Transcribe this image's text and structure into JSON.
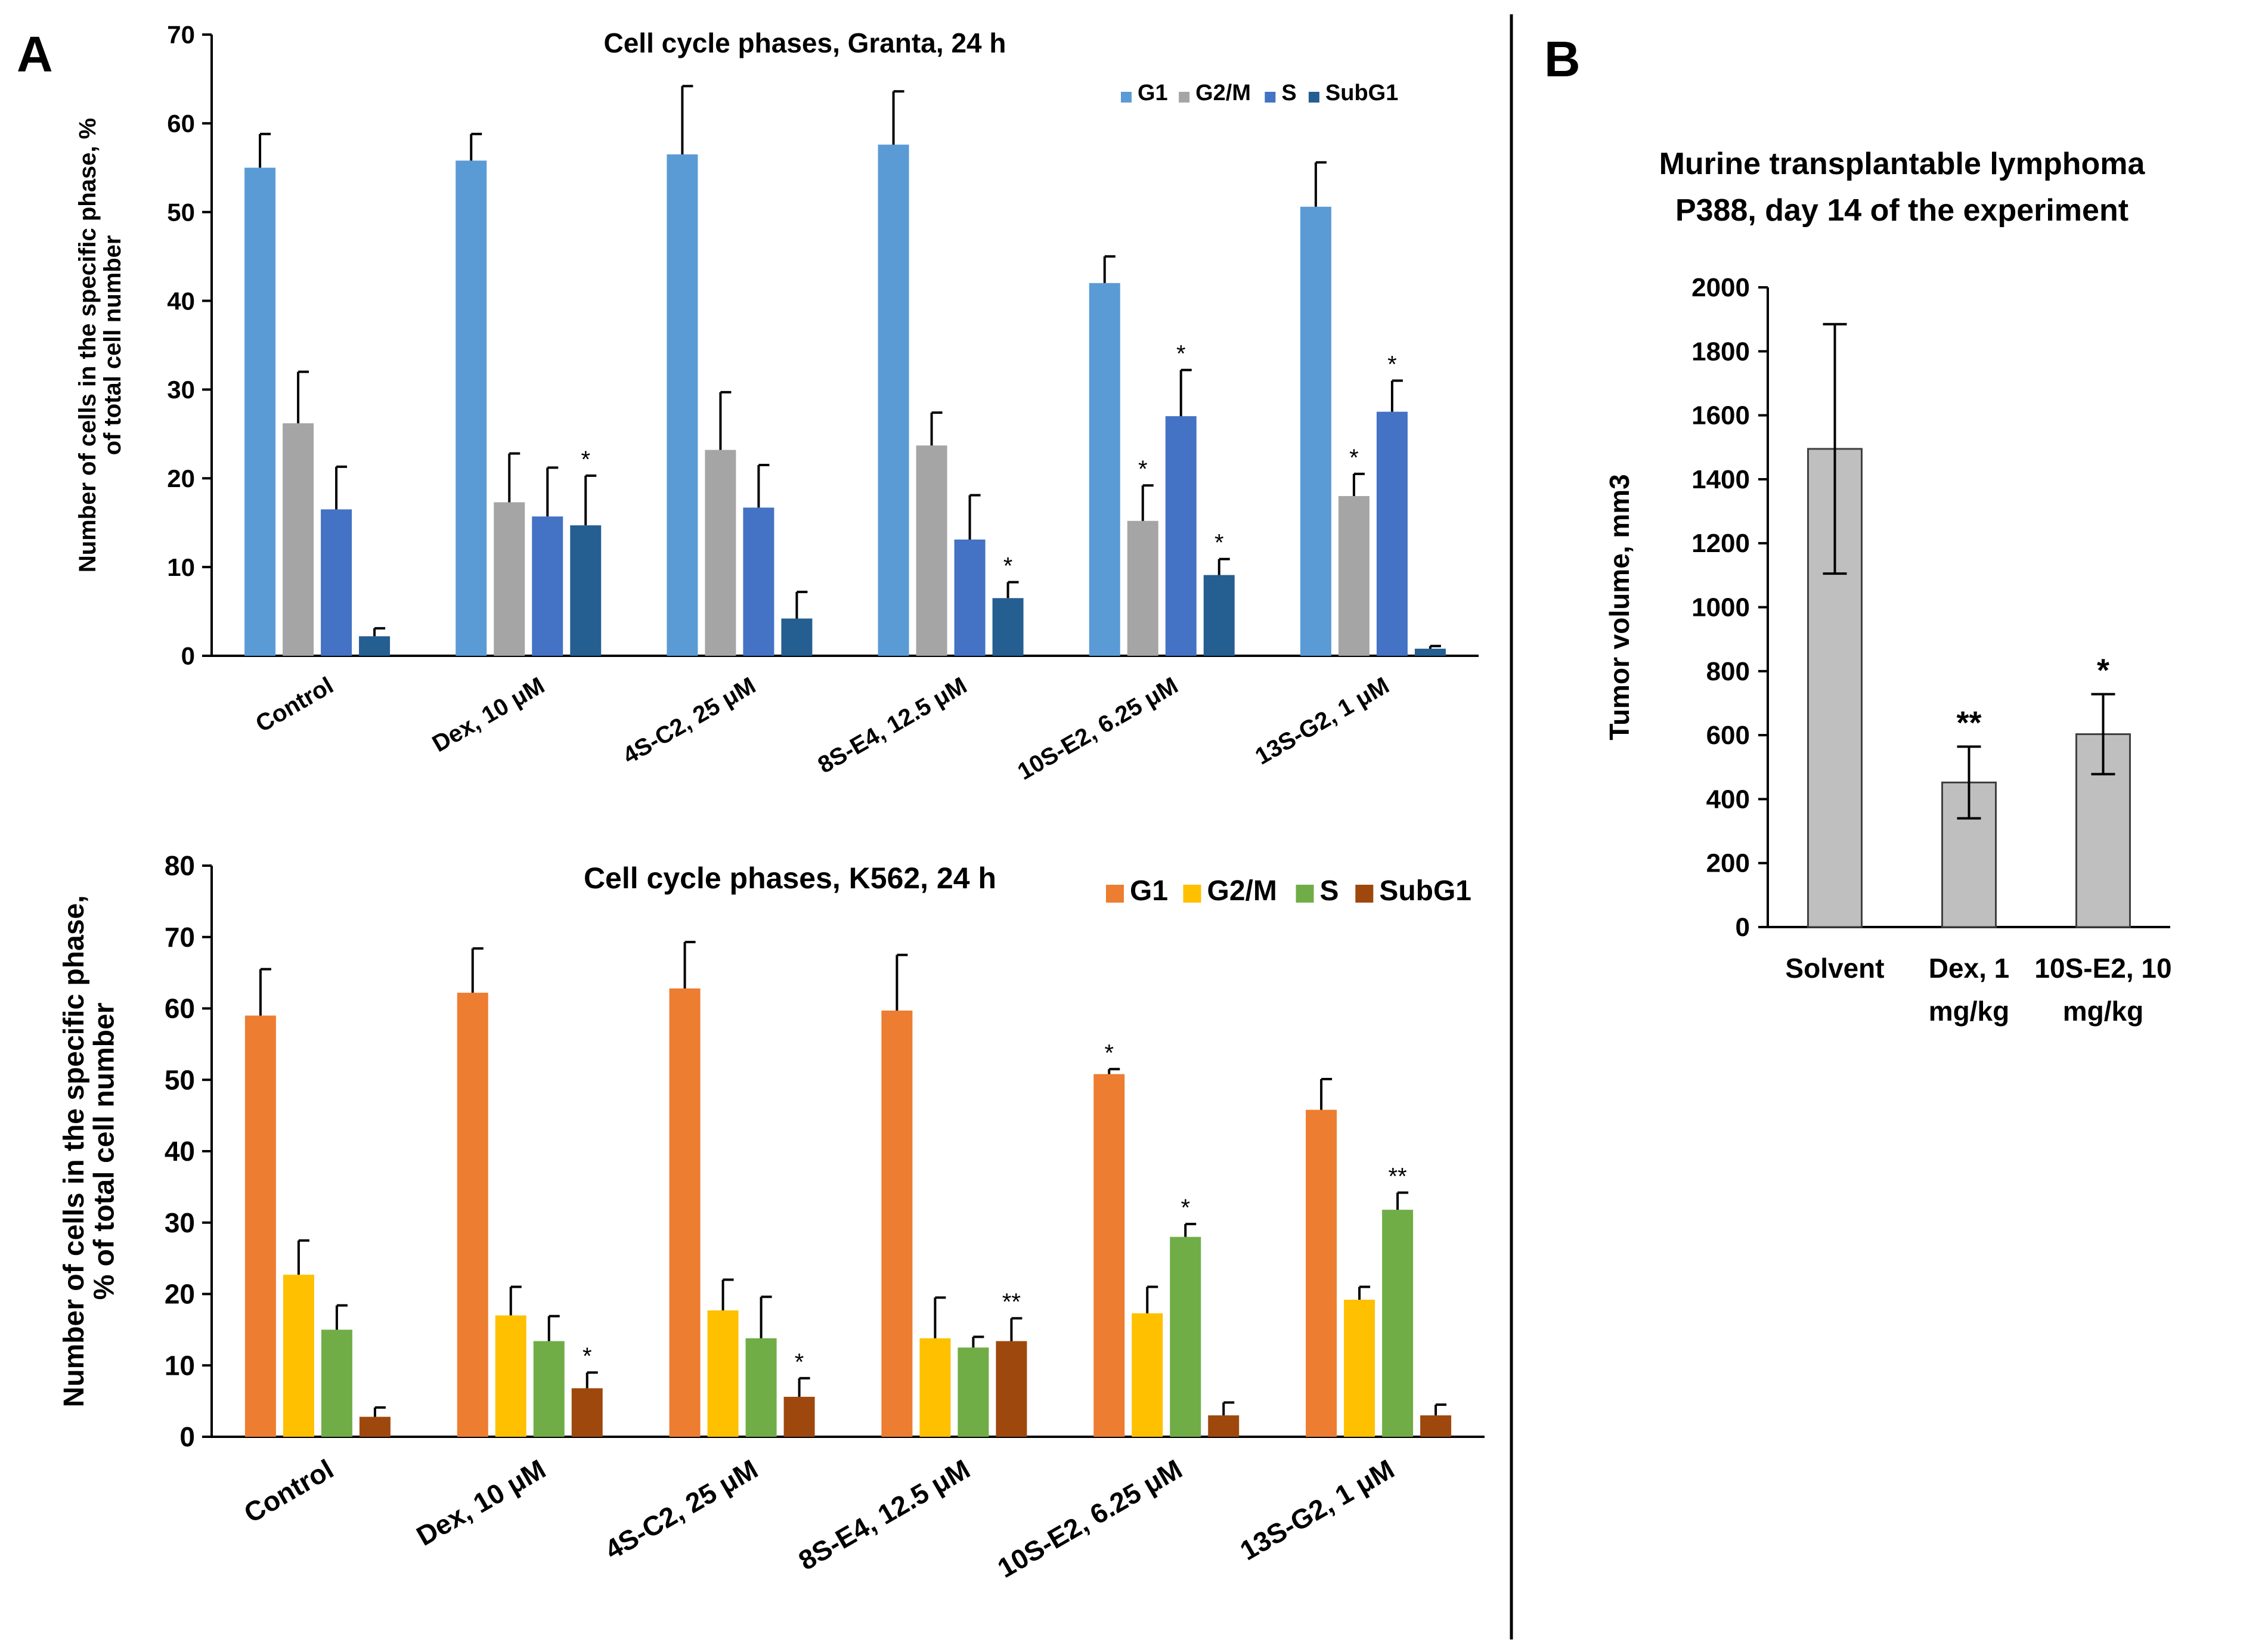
{
  "panels": {
    "a_label": "A",
    "b_label": "B"
  },
  "colors": {
    "granta_g1": "#5b9bd5",
    "granta_g2m": "#a5a5a5",
    "granta_s": "#4472c4",
    "granta_subg1": "#255e91",
    "k562_g1": "#ed7d31",
    "k562_g2m": "#ffc000",
    "k562_s": "#70ad47",
    "k562_subg1": "#9e480e",
    "lymphoma_bar": "#bfbfbf",
    "axis": "#000000"
  },
  "chart_data": [
    {
      "id": "granta",
      "type": "bar",
      "title": "Cell cycle phases, Granta, 24 h",
      "ylabel": "Number of cells in the specific phase, % of total cell number",
      "ylim": [
        0,
        70
      ],
      "yticks": [
        0,
        10,
        20,
        30,
        40,
        50,
        60,
        70
      ],
      "legend_position": "top-right",
      "categories": [
        "Control",
        "Dex, 10 μM",
        "4S-C2, 25 μM",
        "8S-E4, 12.5 μM",
        "10S-E2, 6.25 μM",
        "13S-G2, 1 μM"
      ],
      "series": [
        {
          "name": "G1",
          "values": [
            55,
            55.8,
            56.5,
            57.6,
            42,
            50.6
          ],
          "errors": [
            3.8,
            3,
            7.7,
            6,
            3,
            5
          ],
          "marks": [
            "",
            "",
            "",
            "",
            "",
            ""
          ]
        },
        {
          "name": "G2/M",
          "values": [
            26.2,
            17.3,
            23.2,
            23.7,
            15.2,
            18
          ],
          "errors": [
            5.8,
            5.5,
            6.5,
            3.7,
            4,
            2.5
          ],
          "marks": [
            "",
            "",
            "",
            "",
            "*",
            "*"
          ]
        },
        {
          "name": "S",
          "values": [
            16.5,
            15.7,
            16.7,
            13.1,
            27,
            27.5
          ],
          "errors": [
            4.8,
            5.5,
            4.8,
            5,
            5.2,
            3.5
          ],
          "marks": [
            "",
            "",
            "",
            "",
            "*",
            "*"
          ]
        },
        {
          "name": "SubG1",
          "values": [
            2.2,
            0,
            4.2,
            6.5,
            9.1,
            0.8
          ],
          "errors": [
            0.9,
            0,
            3,
            1.8,
            1.8,
            0.3
          ],
          "marks": [
            "",
            "",
            "",
            "*",
            "*",
            ""
          ]
        }
      ],
      "extra_bars": [
        {
          "category": 1,
          "series": 3,
          "value": 14.7,
          "error": 5.6,
          "mark": "*"
        }
      ]
    },
    {
      "id": "k562",
      "type": "bar",
      "title": "Cell cycle phases, K562, 24 h",
      "ylabel": "Number of cells in the specific phase, % of total cell number",
      "ylim": [
        0,
        80
      ],
      "yticks": [
        0,
        10,
        20,
        30,
        40,
        50,
        60,
        70,
        80
      ],
      "legend_position": "top-right",
      "categories": [
        "Control",
        "Dex, 10 μM",
        "4S-C2, 25 μM",
        "8S-E4, 12.5 μM",
        "10S-E2, 6.25 μM",
        "13S-G2, 1 μM"
      ],
      "series": [
        {
          "name": "G1",
          "values": [
            59,
            62.2,
            62.8,
            59.7,
            50.8,
            45.8
          ],
          "errors": [
            6.5,
            6.2,
            6.5,
            7.8,
            0.7,
            4.3
          ],
          "marks": [
            "",
            "",
            "",
            "",
            "*",
            ""
          ]
        },
        {
          "name": "G2/M",
          "values": [
            22.7,
            17,
            17.7,
            13.8,
            17.3,
            19.2
          ],
          "errors": [
            4.8,
            4,
            4.3,
            5.7,
            3.7,
            1.8
          ],
          "marks": [
            "",
            "",
            "",
            "",
            "",
            ""
          ]
        },
        {
          "name": "S",
          "values": [
            15,
            13.4,
            13.8,
            12.5,
            28,
            31.8
          ],
          "errors": [
            3.4,
            3.5,
            5.8,
            1.5,
            1.8,
            2.4
          ],
          "marks": [
            "",
            "",
            "",
            "",
            "*",
            "**"
          ]
        },
        {
          "name": "SubG1",
          "values": [
            2.8,
            6.8,
            5.6,
            13.4,
            3,
            3
          ],
          "errors": [
            1.3,
            2.2,
            2.6,
            3.2,
            1.8,
            1.5
          ],
          "marks": [
            "",
            "*",
            "*",
            "**",
            "",
            ""
          ]
        }
      ]
    },
    {
      "id": "lymphoma",
      "type": "bar",
      "title_lines": [
        "Murine transplantable lymphoma",
        "P388, day 14 of the experiment"
      ],
      "ylabel": "Tumor volume, mm3",
      "ylim": [
        0,
        2000
      ],
      "yticks": [
        0,
        200,
        400,
        600,
        800,
        1000,
        1200,
        1400,
        1600,
        1800,
        2000
      ],
      "categories": [
        [
          "Solvent"
        ],
        [
          "Dex, 1",
          "mg/kg"
        ],
        [
          "10S-E2, 10",
          "mg/kg"
        ]
      ],
      "values": [
        1495,
        452,
        603
      ],
      "errors": [
        390,
        112,
        125
      ],
      "marks": [
        "",
        "**",
        "*"
      ]
    }
  ]
}
